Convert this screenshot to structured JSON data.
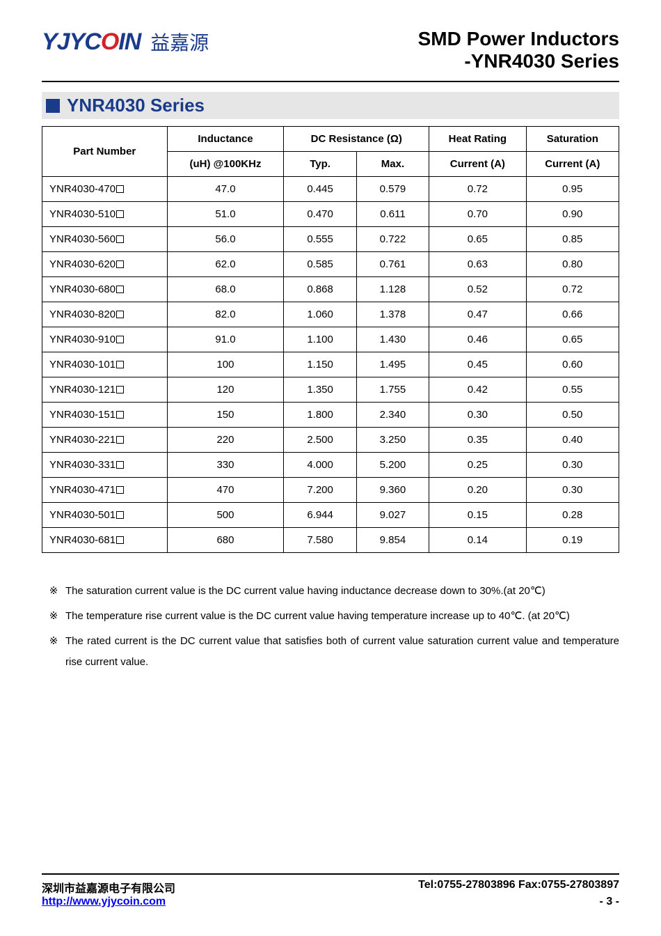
{
  "header": {
    "logo_en_parts": [
      "YJYC",
      "O",
      "IN"
    ],
    "logo_cn": "益嘉源",
    "title_line1": "SMD Power Inductors",
    "title_line2": "-YNR4030 Series"
  },
  "section": {
    "title": "YNR4030 Series"
  },
  "table": {
    "columns": {
      "part_number": "Part Number",
      "inductance_top": "Inductance",
      "inductance_bot": "(uH) @100KHz",
      "dcr_top": "DC Resistance (Ω)",
      "dcr_typ": "Typ.",
      "dcr_max": "Max.",
      "heat_top": "Heat Rating",
      "heat_bot": "Current (A)",
      "sat_top": "Saturation",
      "sat_bot": "Current (A)"
    },
    "rows": [
      {
        "pn": "YNR4030-470",
        "l": "47.0",
        "typ": "0.445",
        "max": "0.579",
        "heat": "0.72",
        "sat": "0.95"
      },
      {
        "pn": "YNR4030-510",
        "l": "51.0",
        "typ": "0.470",
        "max": "0.611",
        "heat": "0.70",
        "sat": "0.90"
      },
      {
        "pn": "YNR4030-560",
        "l": "56.0",
        "typ": "0.555",
        "max": "0.722",
        "heat": "0.65",
        "sat": "0.85"
      },
      {
        "pn": "YNR4030-620",
        "l": "62.0",
        "typ": "0.585",
        "max": "0.761",
        "heat": "0.63",
        "sat": "0.80"
      },
      {
        "pn": "YNR4030-680",
        "l": "68.0",
        "typ": "0.868",
        "max": "1.128",
        "heat": "0.52",
        "sat": "0.72"
      },
      {
        "pn": "YNR4030-820",
        "l": "82.0",
        "typ": "1.060",
        "max": "1.378",
        "heat": "0.47",
        "sat": "0.66"
      },
      {
        "pn": "YNR4030-910",
        "l": "91.0",
        "typ": "1.100",
        "max": "1.430",
        "heat": "0.46",
        "sat": "0.65"
      },
      {
        "pn": "YNR4030-101",
        "l": "100",
        "typ": "1.150",
        "max": "1.495",
        "heat": "0.45",
        "sat": "0.60"
      },
      {
        "pn": "YNR4030-121",
        "l": "120",
        "typ": "1.350",
        "max": "1.755",
        "heat": "0.42",
        "sat": "0.55"
      },
      {
        "pn": "YNR4030-151",
        "l": "150",
        "typ": "1.800",
        "max": "2.340",
        "heat": "0.30",
        "sat": "0.50"
      },
      {
        "pn": "YNR4030-221",
        "l": "220",
        "typ": "2.500",
        "max": "3.250",
        "heat": "0.35",
        "sat": "0.40"
      },
      {
        "pn": "YNR4030-331",
        "l": "330",
        "typ": "4.000",
        "max": "5.200",
        "heat": "0.25",
        "sat": "0.30"
      },
      {
        "pn": "YNR4030-471",
        "l": "470",
        "typ": "7.200",
        "max": "9.360",
        "heat": "0.20",
        "sat": "0.30"
      },
      {
        "pn": "YNR4030-501",
        "l": "500",
        "typ": "6.944",
        "max": "9.027",
        "heat": "0.15",
        "sat": "0.28"
      },
      {
        "pn": "YNR4030-681",
        "l": "680",
        "typ": "7.580",
        "max": "9.854",
        "heat": "0.14",
        "sat": "0.19"
      }
    ]
  },
  "notes": {
    "marker": "※",
    "items": [
      "The saturation current value is the DC current value having inductance decrease down to 30%.(at 20℃)",
      "The temperature rise current value is the DC current value having temperature increase up to 40℃. (at 20℃)",
      "The rated current is the DC current value that satisfies both of current value saturation current value and temperature rise current value."
    ]
  },
  "footer": {
    "company": "深圳市益嘉源电子有限公司",
    "tel_fax": "Tel:0755-27803896   Fax:0755-27803897",
    "url": "http://www.yjycoin.com",
    "page": "- 3 -"
  },
  "colors": {
    "brand_blue": "#1a3a8a",
    "brand_red": "#d2232a",
    "section_bg": "#e6e6e6"
  }
}
